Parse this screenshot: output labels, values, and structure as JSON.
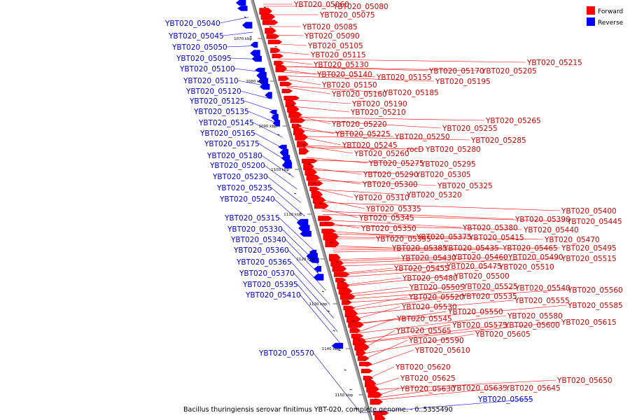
{
  "title": "Bacillus thuringiensis serovar finitimus YBT-020, complete genome. - 0..5355490",
  "legend": [
    {
      "label": "Forward",
      "color": "#ff0000"
    },
    {
      "label": "Reverse",
      "color": "#0000ff"
    }
  ],
  "ticks": [
    "1070 kbp",
    "1080 kbp",
    "1090 kbp",
    "1100 kbp",
    "1110 kbp",
    "1120 kbp",
    "1130 kbp",
    "1140 kbp",
    "1150 kbp"
  ],
  "reverse_labels": [
    "YBT020_05040",
    "YBT020_05045",
    "YBT020_05050",
    "YBT020_05095",
    "YBT020_05100",
    "YBT020_05110",
    "YBT020_05120",
    "YBT020_05125",
    "YBT020_05135",
    "YBT020_05145",
    "YBT020_05165",
    "YBT020_05175",
    "YBT020_05180",
    "YBT020_05200",
    "YBT020_05230",
    "YBT020_05235",
    "YBT020_05240",
    "YBT020_05315",
    "YBT020_05330",
    "YBT020_05340",
    "YBT020_05360",
    "YBT020_05365",
    "YBT020_05370",
    "YBT020_05395",
    "YBT020_05410",
    "YBT020_05570",
    "YBT020_05655"
  ],
  "forward_labels": [
    "YBT020_05060",
    "YBT020_05080",
    "YBT020_05075",
    "YBT020_05085",
    "YBT020_05090",
    "YBT020_05105",
    "YBT020_05115",
    "YBT020_05130",
    "YBT020_05140",
    "YBT020_05155",
    "YBT020_05170",
    "YBT020_05205",
    "YBT020_05215",
    "YBT020_05150",
    "YBT020_05195",
    "YBT020_05160",
    "YBT020_05185",
    "YBT020_05190",
    "YBT020_05210",
    "YBT020_05220",
    "YBT020_05255",
    "YBT020_05265",
    "YBT020_05225",
    "YBT020_05250",
    "YBT020_05245",
    "YBT020_05285",
    "YBT020_05260",
    "rocD",
    "YBT020_05280",
    "YBT020_05275",
    "YBT020_05295",
    "YBT020_05290",
    "YBT020_05305",
    "YBT020_05300",
    "YBT020_05325",
    "YBT020_05310",
    "YBT020_05320",
    "YBT020_05335",
    "YBT020_05400",
    "YBT020_05345",
    "YBT020_05390",
    "YBT020_05445",
    "YBT020_05380",
    "YBT020_05350",
    "YBT020_05440",
    "YBT020_05375",
    "YBT020_05415",
    "YBT020_05470",
    "YBT020_05355",
    "YBT020_05385",
    "YBT020_05435",
    "YBT020_05465",
    "YBT020_05495",
    "YBT020_05430",
    "YBT020_05460",
    "YBT020_05490",
    "YBT020_05515",
    "YBT020_05455",
    "YBT020_05475",
    "YBT020_05510",
    "YBT020_05480",
    "YBT020_05500",
    "YBT020_05505",
    "YBT020_05525",
    "YBT020_05540",
    "YBT020_05560",
    "YBT020_05520",
    "YBT020_05535",
    "YBT020_05555",
    "YBT020_05530",
    "YBT020_05550",
    "YBT020_05585",
    "YBT020_05545",
    "YBT020_05580",
    "YBT020_05575",
    "YBT020_05600",
    "YBT020_05615",
    "YBT020_05565",
    "YBT020_05605",
    "YBT020_05590",
    "YBT020_05610",
    "YBT020_05620",
    "YBT020_05625",
    "YBT020_05650",
    "YBT020_05630",
    "YBT020_05635",
    "YBT020_05645"
  ]
}
